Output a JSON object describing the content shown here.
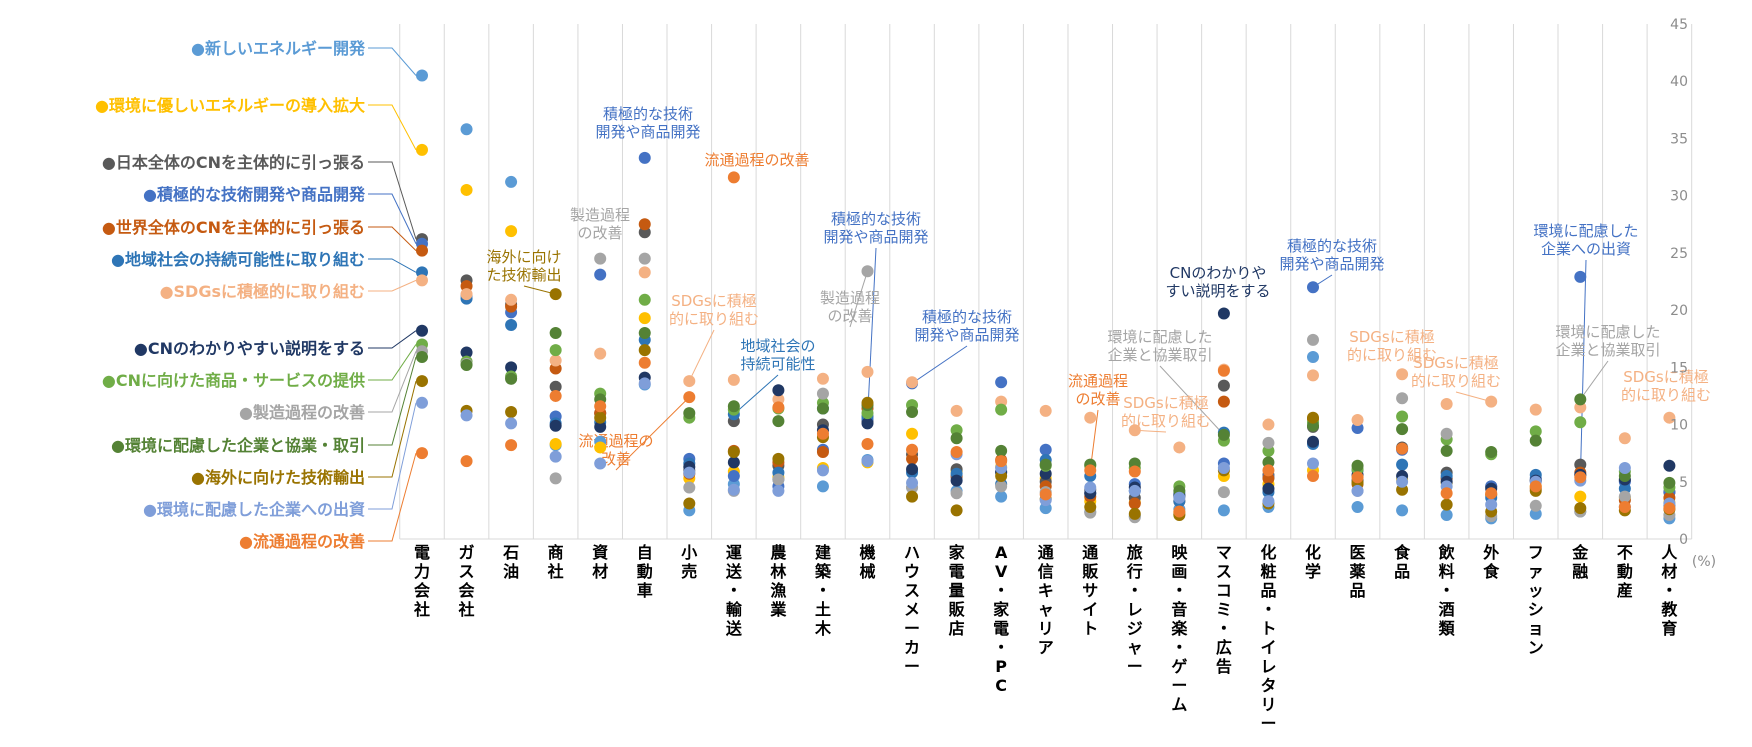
{
  "colors": {
    "new_energy": "#5b9bd5",
    "eco_energy": "#ffc000",
    "japan_cn": "#595959",
    "tech_dev": "#4472c4",
    "world_cn": "#c55a11",
    "regional": "#2e75b6",
    "sdgs": "#f4b183",
    "explain": "#203864",
    "products": "#70ad47",
    "manufacturing": "#a5a5a5",
    "partner": "#548235",
    "overseas": "#997300",
    "invest": "#7f9ed9",
    "distribution": "#ed7d31",
    "grid": "#d9d9d9",
    "axis": "#8c8c8c"
  },
  "chart_data": {
    "type": "scatter",
    "title": "",
    "xlabel": "",
    "ylabel": "",
    "unit_label": "(%)",
    "ylim": [
      0,
      45
    ],
    "yticks": [
      0,
      5,
      10,
      15,
      20,
      25,
      30,
      35,
      40,
      45
    ],
    "y_axis_position": "right",
    "grid": "vertical",
    "legend_position": "left",
    "categories": [
      "電力会社",
      "ガス会社",
      "石油",
      "商社",
      "資材",
      "自動車",
      "小売",
      "運送・輸送",
      "農林漁業",
      "建築・土木",
      "機械",
      "ハウスメーカー",
      "家電量販店",
      "AV・家電・PC",
      "通信キャリア",
      "通販サイト",
      "旅行・レジャー",
      "映画・音楽・ゲーム",
      "マスコミ・広告",
      "化粧品・トイレタリー",
      "化学",
      "医薬品",
      "食品",
      "飲料・酒類",
      "外食",
      "ファッション",
      "金融",
      "不動産",
      "人材・教育"
    ],
    "series": [
      {
        "key": "new_energy",
        "name": "●新しいエネルギー開発",
        "values": [
          40.5,
          35.8,
          31.2,
          8.2,
          8.5,
          13.5,
          2.5,
          4.8,
          5.2,
          4.6,
          6.9,
          4.5,
          4.2,
          3.7,
          2.7,
          2.4,
          2.0,
          2.6,
          2.5,
          2.8,
          15.9,
          2.8,
          2.5,
          2.1,
          1.8,
          2.2,
          2.4,
          2.8,
          1.8
        ]
      },
      {
        "key": "eco_energy",
        "name": "●環境に優しいエネルギーの導入拡大",
        "values": [
          34.0,
          30.5,
          26.9,
          8.3,
          8.0,
          19.3,
          5.3,
          5.9,
          5.4,
          6.2,
          6.7,
          9.2,
          5.9,
          6.3,
          5.3,
          3.3,
          3.2,
          2.3,
          5.5,
          4.8,
          6.0,
          5.0,
          5.2,
          4.9,
          3.8,
          4.6,
          3.7,
          3.6,
          3.2
        ]
      },
      {
        "key": "japan_cn",
        "name": "●日本全体のCNを主体的に引っ張る",
        "values": [
          26.2,
          22.6,
          20.5,
          13.3,
          11.0,
          26.8,
          6.0,
          10.3,
          6.4,
          10.0,
          10.3,
          7.4,
          6.1,
          5.9,
          5.0,
          4.3,
          3.6,
          3.7,
          13.4,
          5.6,
          9.8,
          5.1,
          8.0,
          5.8,
          4.6,
          5.1,
          6.5,
          5.1,
          4.1
        ]
      },
      {
        "key": "tech_dev",
        "name": "●積極的な技術開発や商品開発",
        "values": [
          25.8,
          21.3,
          19.8,
          10.7,
          23.1,
          33.3,
          7.0,
          5.5,
          4.6,
          7.8,
          10.5,
          13.6,
          5.4,
          13.7,
          7.8,
          4.0,
          4.8,
          4.0,
          6.6,
          5.4,
          22.0,
          9.7,
          7.8,
          5.3,
          4.6,
          5.3,
          22.9,
          5.0,
          4.1
        ]
      },
      {
        "key": "world_cn",
        "name": "●世界全体のCNを主体的に引っ張る",
        "values": [
          25.2,
          22.1,
          20.3,
          14.9,
          11.0,
          27.5,
          5.7,
          7.7,
          6.7,
          7.6,
          11.4,
          7.0,
          5.5,
          6.9,
          4.6,
          3.7,
          3.1,
          3.3,
          12.0,
          5.3,
          10.5,
          4.8,
          7.9,
          5.3,
          3.9,
          4.4,
          5.8,
          3.4,
          3.6
        ]
      },
      {
        "key": "regional",
        "name": "●地域社会の持続可能性に取り組む",
        "values": [
          23.3,
          21.0,
          18.7,
          10.1,
          10.2,
          17.4,
          6.6,
          10.9,
          5.8,
          11.4,
          10.7,
          5.8,
          5.7,
          4.8,
          6.9,
          5.5,
          4.2,
          3.3,
          9.3,
          4.1,
          8.3,
          6.0,
          6.5,
          5.5,
          3.6,
          5.6,
          5.6,
          4.4,
          2.9
        ]
      },
      {
        "key": "sdgs",
        "name": "●SDGsに積極的に取り組む",
        "values": [
          22.6,
          21.4,
          20.9,
          15.6,
          16.2,
          23.3,
          13.8,
          13.9,
          12.2,
          14.0,
          14.6,
          13.7,
          11.2,
          12.0,
          11.2,
          10.6,
          9.5,
          8.0,
          14.8,
          10.0,
          14.3,
          10.4,
          14.4,
          11.8,
          12.0,
          11.3,
          11.5,
          8.8,
          10.6
        ]
      },
      {
        "key": "explain",
        "name": "●CNのわかりやすい説明をする",
        "values": [
          18.2,
          16.3,
          15.0,
          9.9,
          9.8,
          14.1,
          6.3,
          6.7,
          13.0,
          9.5,
          10.1,
          6.1,
          5.1,
          5.8,
          5.7,
          4.0,
          4.5,
          3.8,
          19.7,
          4.4,
          8.5,
          5.6,
          5.5,
          5.0,
          4.4,
          5.1,
          5.6,
          5.2,
          6.4
        ]
      },
      {
        "key": "products",
        "name": "●CNに向けた商品・サービスの提供",
        "values": [
          17.0,
          15.5,
          14.2,
          16.5,
          12.7,
          20.9,
          10.6,
          11.3,
          11.4,
          11.9,
          11.0,
          11.7,
          9.5,
          11.3,
          6.4,
          6.4,
          6.2,
          4.6,
          8.6,
          7.7,
          10.2,
          6.1,
          10.7,
          8.7,
          7.4,
          9.4,
          10.2,
          5.9,
          4.5
        ]
      },
      {
        "key": "manufacturing",
        "name": "●製造過程の改善",
        "values": [
          16.4,
          15.3,
          14.0,
          5.3,
          24.5,
          24.5,
          4.5,
          4.2,
          5.2,
          12.7,
          23.4,
          4.5,
          4.0,
          4.6,
          4.1,
          2.3,
          1.9,
          2.2,
          4.1,
          8.4,
          17.4,
          4.2,
          12.3,
          9.2,
          2.0,
          2.9,
          2.4,
          3.7,
          2.1
        ]
      },
      {
        "key": "partner",
        "name": "●環境に配慮した企業と協業・取引",
        "values": [
          15.9,
          15.2,
          14.0,
          18.0,
          12.2,
          18.0,
          11.0,
          11.6,
          10.3,
          11.4,
          11.7,
          11.1,
          8.8,
          7.7,
          6.5,
          6.5,
          6.6,
          4.2,
          9.1,
          6.7,
          9.9,
          6.4,
          9.6,
          7.7,
          7.6,
          8.6,
          12.2,
          5.5,
          4.9
        ]
      },
      {
        "key": "overseas",
        "name": "●海外に向けた技術輸出",
        "values": [
          13.8,
          11.2,
          11.1,
          21.4,
          10.6,
          16.5,
          3.1,
          7.6,
          7.0,
          8.9,
          11.9,
          3.7,
          2.5,
          5.5,
          3.5,
          2.8,
          2.2,
          2.1,
          6.0,
          3.1,
          10.6,
          4.9,
          4.3,
          3.0,
          2.4,
          4.2,
          2.7,
          2.5,
          2.6
        ]
      },
      {
        "key": "invest",
        "name": "●環境に配慮した企業への出資",
        "values": [
          11.9,
          10.8,
          10.1,
          7.2,
          6.6,
          13.6,
          5.8,
          4.3,
          4.2,
          6.0,
          6.8,
          4.9,
          7.4,
          6.2,
          3.4,
          4.5,
          4.2,
          3.6,
          6.2,
          3.3,
          6.6,
          4.2,
          5.0,
          4.6,
          3.0,
          5.0,
          5.1,
          6.2,
          3.1
        ]
      },
      {
        "key": "distribution",
        "name": "●流通過程の改善",
        "values": [
          7.5,
          6.8,
          8.2,
          12.5,
          11.6,
          15.4,
          12.4,
          31.6,
          11.5,
          9.2,
          8.3,
          7.8,
          7.6,
          6.8,
          3.9,
          6.0,
          5.9,
          2.4,
          14.7,
          6.0,
          5.5,
          5.4,
          7.9,
          4.0,
          4.0,
          4.6,
          5.4,
          2.8,
          2.7
        ]
      }
    ],
    "annotations": [
      {
        "text": [
          "積極的な技術",
          "開発や商品開発"
        ],
        "series": "tech_dev",
        "category": "自動車",
        "color": "tech_dev"
      },
      {
        "text": [
          "流通過程の改善"
        ],
        "series": "distribution",
        "category": "運送・輸送",
        "color": "distribution"
      },
      {
        "text": [
          "製造過程",
          "の改善"
        ],
        "series": "manufacturing",
        "category": "資材",
        "color": "manufacturing"
      },
      {
        "text": [
          "海外に向け",
          "た技術輸出"
        ],
        "series": "overseas",
        "category": "商社",
        "color": "overseas"
      },
      {
        "text": [
          "SDGsに積極",
          "的に取り組む"
        ],
        "series": "sdgs",
        "category": "小売",
        "color": "sdgs"
      },
      {
        "text": [
          "流通過程の",
          "改善"
        ],
        "series": "distribution",
        "category": "小売",
        "color": "distribution"
      },
      {
        "text": [
          "地域社会の",
          "持続可能性"
        ],
        "series": "regional",
        "category": "運送・輸送",
        "color": "regional"
      },
      {
        "text": [
          "積極的な技術",
          "開発や商品開発"
        ],
        "series": "tech_dev",
        "category": "機械",
        "color": "tech_dev"
      },
      {
        "text": [
          "製造過程",
          "の改善"
        ],
        "series": "manufacturing",
        "category": "機械",
        "color": "manufacturing"
      },
      {
        "text": [
          "積極的な技術",
          "開発や商品開発"
        ],
        "series": "tech_dev",
        "category": "ハウスメーカー",
        "color": "tech_dev"
      },
      {
        "text": [
          "流通過程",
          "の改善"
        ],
        "series": "distribution",
        "category": "通販サイト",
        "color": "distribution"
      },
      {
        "text": [
          "環境に配慮した",
          "企業と協業取引"
        ],
        "series": "partner",
        "category": "マスコミ・広告",
        "color": "manufacturing"
      },
      {
        "text": [
          "SDGsに積極",
          "的に取り組む"
        ],
        "series": "sdgs",
        "category": "旅行・レジャー",
        "color": "sdgs"
      },
      {
        "text": [
          "CNのわかりや",
          "すい説明をする"
        ],
        "series": "explain",
        "category": "マスコミ・広告",
        "color": "explain"
      },
      {
        "text": [
          "積極的な技術",
          "開発や商品開発"
        ],
        "series": "tech_dev",
        "category": "化学",
        "color": "tech_dev"
      },
      {
        "text": [
          "SDGsに積極",
          "的に取り組む"
        ],
        "series": "sdgs",
        "category": "食品",
        "color": "sdgs"
      },
      {
        "text": [
          "SDGsに積極",
          "的に取り組む"
        ],
        "series": "sdgs",
        "category": "外食",
        "color": "sdgs"
      },
      {
        "text": [
          "環境に配慮した",
          "企業への出資"
        ],
        "series": "invest",
        "category": "金融",
        "color": "tech_dev"
      },
      {
        "text": [
          "環境に配慮した",
          "企業と協業取引"
        ],
        "series": "partner",
        "category": "金融",
        "color": "manufacturing"
      },
      {
        "text": [
          "SDGsに積極",
          "的に取り組む"
        ],
        "series": "sdgs",
        "category": "人材・教育",
        "color": "sdgs"
      }
    ]
  }
}
